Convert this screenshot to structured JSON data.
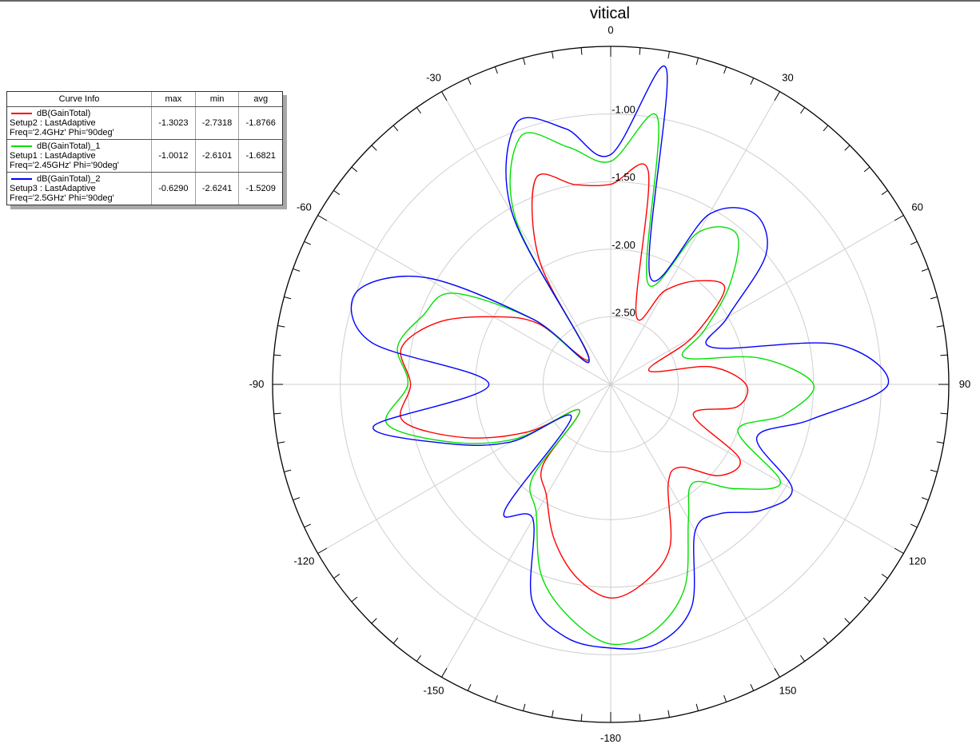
{
  "chart_data": {
    "type": "polar-line",
    "title": "vitical",
    "angle_unit": "deg",
    "angle_direction": "clockwise",
    "zero_location": "top",
    "radial_range": [
      -3.0,
      -0.5
    ],
    "radial_ticks": [
      -2.5,
      -2.0,
      -1.5,
      -1.0
    ],
    "radial_tick_labels": [
      "-2.50",
      "-2.00",
      "-1.50",
      "-1.00"
    ],
    "angle_labels": [
      {
        "angle": 0,
        "label": "0"
      },
      {
        "angle": 30,
        "label": "30"
      },
      {
        "angle": 60,
        "label": "60"
      },
      {
        "angle": 90,
        "label": "90"
      },
      {
        "angle": 120,
        "label": "120"
      },
      {
        "angle": 150,
        "label": "150"
      },
      {
        "angle": 180,
        "label": "-180"
      },
      {
        "angle": -150,
        "label": "-150"
      },
      {
        "angle": -120,
        "label": "-120"
      },
      {
        "angle": -90,
        "label": "-90"
      },
      {
        "angle": -60,
        "label": "-60"
      },
      {
        "angle": -30,
        "label": "-30"
      }
    ],
    "grid": true,
    "legend_position": "top-left",
    "series": [
      {
        "name": "dB(GainTotal)",
        "setup": "Setup2 : LastAdaptive",
        "params": "Freq='2.4GHz' Phi='90deg'",
        "color": "#ff0000",
        "max": "-1.3023",
        "min": "-2.7318",
        "avg": "-1.8766",
        "theta": [
          -180,
          -170,
          -160,
          -150,
          -140,
          -130,
          -120,
          -110,
          -100,
          -90,
          -80,
          -70,
          -60,
          -50,
          -40,
          -30,
          -20,
          -10,
          0,
          10,
          20,
          30,
          40,
          50,
          60,
          70,
          80,
          90,
          100,
          110,
          120,
          130,
          140,
          150,
          160,
          170,
          180
        ],
        "values": [
          -1.42,
          -1.55,
          -1.78,
          -2.05,
          -2.22,
          -2.7,
          -2.3,
          -1.85,
          -1.44,
          -1.52,
          -1.43,
          -1.65,
          -2.0,
          -2.3,
          -2.75,
          -1.95,
          -1.38,
          -1.5,
          -1.52,
          -1.4,
          -2.45,
          -2.2,
          -2.0,
          -1.9,
          -2.3,
          -2.7,
          -2.25,
          -2.0,
          -2.05,
          -2.35,
          -1.9,
          -1.95,
          -2.2,
          -2.15,
          -1.72,
          -1.52,
          -1.42
        ]
      },
      {
        "name": "dB(GainTotal)_1",
        "setup": "Setup1 : LastAdaptive",
        "params": "Freq='2.45GHz' Phi='90deg'",
        "color": "#00e000",
        "max": "-1.0012",
        "min": "-2.6101",
        "avg": "-1.6821",
        "theta": [
          -180,
          -170,
          -160,
          -150,
          -140,
          -130,
          -120,
          -110,
          -100,
          -90,
          -80,
          -70,
          -60,
          -50,
          -40,
          -30,
          -20,
          -10,
          0,
          10,
          20,
          30,
          40,
          50,
          60,
          70,
          80,
          90,
          100,
          110,
          120,
          130,
          140,
          150,
          160,
          170,
          180
        ],
        "values": [
          -1.08,
          -1.25,
          -1.5,
          -1.9,
          -2.1,
          -2.7,
          -2.2,
          -1.75,
          -1.32,
          -1.5,
          -1.4,
          -1.52,
          -1.65,
          -2.25,
          -2.75,
          -1.6,
          -1.05,
          -1.22,
          -1.35,
          -1.0,
          -2.2,
          -1.7,
          -1.55,
          -1.85,
          -2.2,
          -2.42,
          -1.88,
          -1.5,
          -1.7,
          -2.0,
          -1.55,
          -1.8,
          -2.05,
          -1.85,
          -1.4,
          -1.15,
          -1.08
        ]
      },
      {
        "name": "dB(GainTotal)_2",
        "setup": "Setup3 : LastAdaptive",
        "params": "Freq='2.5GHz' Phi='90deg'",
        "color": "#0000ff",
        "max": "-0.6290",
        "min": "-2.6241",
        "avg": "-1.5209",
        "theta": [
          -180,
          -170,
          -160,
          -150,
          -140,
          -130,
          -120,
          -110,
          -100,
          -90,
          -80,
          -70,
          -60,
          -50,
          -40,
          -30,
          -20,
          -10,
          0,
          10,
          20,
          30,
          40,
          50,
          60,
          70,
          80,
          90,
          100,
          110,
          120,
          130,
          140,
          150,
          160,
          170,
          180
        ],
        "values": [
          -1.05,
          -1.1,
          -1.3,
          -1.85,
          -1.78,
          -2.62,
          -2.15,
          -1.72,
          -1.22,
          -2.1,
          -1.2,
          -1.0,
          -1.42,
          -2.25,
          -2.75,
          -1.55,
          -0.95,
          -1.08,
          -1.3,
          -0.63,
          -2.15,
          -1.55,
          -1.35,
          -1.5,
          -2.0,
          -2.2,
          -1.3,
          -0.95,
          -1.5,
          -1.85,
          -1.45,
          -1.55,
          -1.75,
          -1.75,
          -1.25,
          -1.05,
          -1.05
        ]
      }
    ]
  },
  "legend": {
    "headers": [
      "Curve Info",
      "max",
      "min",
      "avg"
    ]
  }
}
